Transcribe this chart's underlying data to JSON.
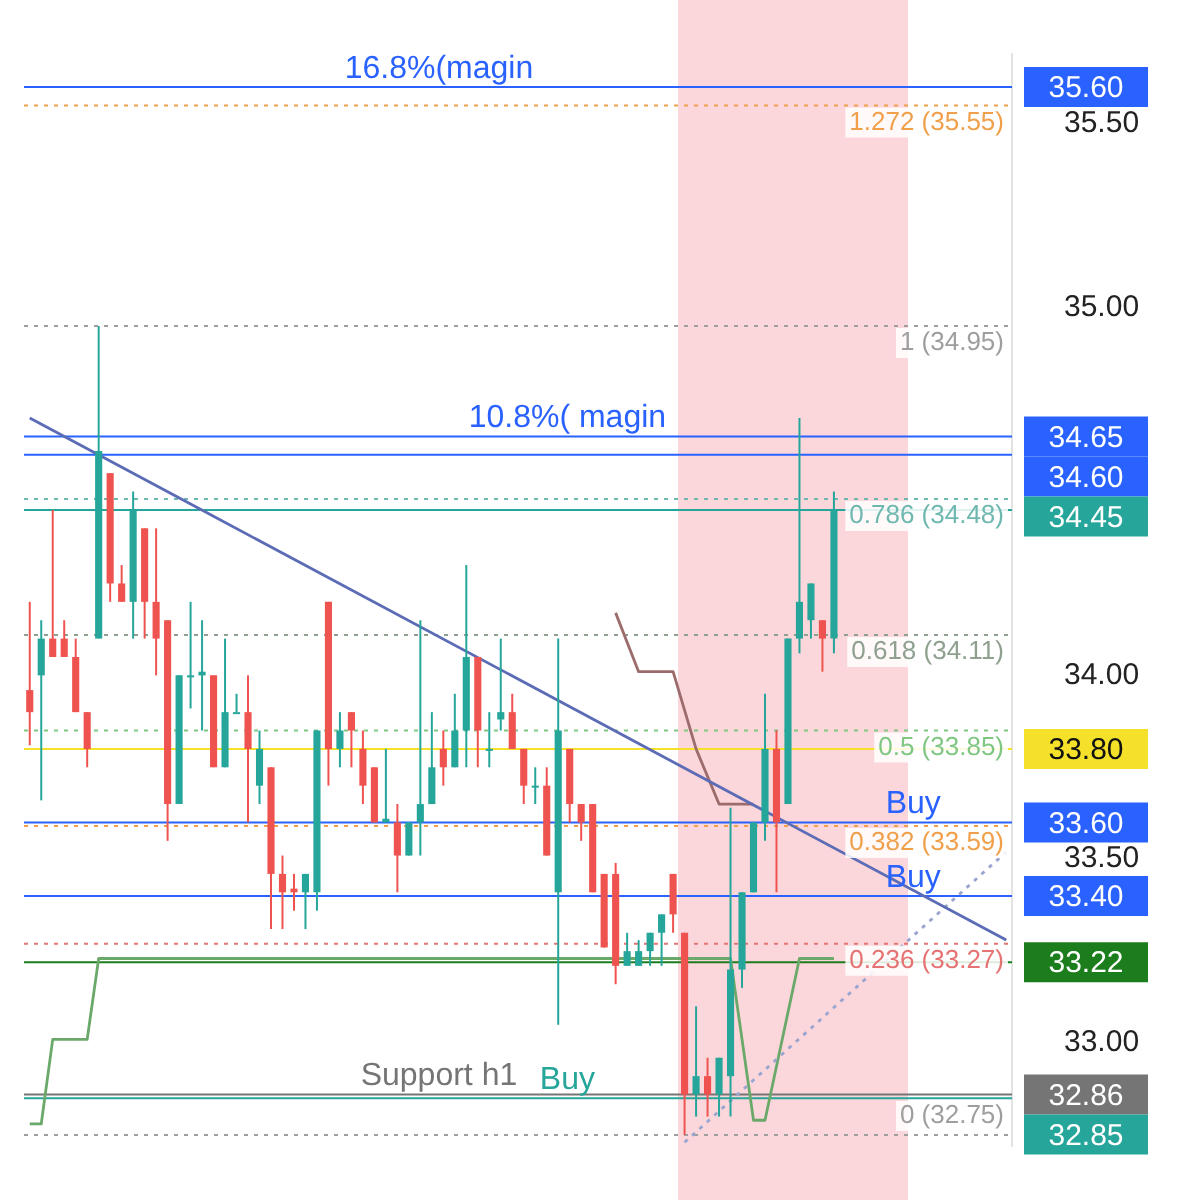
{
  "chart_data": {
    "type": "candlestick",
    "categories": [
      null,
      null,
      null,
      null,
      null,
      null,
      null,
      null,
      null,
      null,
      null,
      null,
      null,
      null,
      null,
      null,
      null,
      null,
      null,
      null,
      null,
      null,
      null,
      null,
      null,
      null,
      null,
      null,
      null,
      null,
      null,
      null,
      null,
      null,
      null,
      null,
      null,
      null,
      null,
      null,
      null,
      null,
      null,
      null,
      null,
      null,
      null,
      null,
      null,
      null,
      null,
      null,
      null,
      null,
      null,
      null,
      null,
      null,
      null,
      null,
      null,
      null,
      null,
      null,
      null,
      null,
      null,
      null,
      null,
      null,
      null,
      null,
      null,
      null,
      null,
      null,
      null,
      null,
      null,
      null,
      null,
      null,
      null,
      null,
      null,
      null
    ],
    "ohlc": [
      [
        33.96,
        34.2,
        33.81,
        33.9
      ],
      [
        34.0,
        34.15,
        33.66,
        34.1
      ],
      [
        34.1,
        34.45,
        34.05,
        34.05
      ],
      [
        34.1,
        34.15,
        34.05,
        34.05
      ],
      [
        34.05,
        34.1,
        33.9,
        33.9
      ],
      [
        33.9,
        33.9,
        33.75,
        33.8
      ],
      [
        34.1,
        34.95,
        34.1,
        34.61
      ],
      [
        34.55,
        34.55,
        34.2,
        34.25
      ],
      [
        34.25,
        34.3,
        34.2,
        34.2
      ],
      [
        34.2,
        34.5,
        34.1,
        34.45
      ],
      [
        34.4,
        34.4,
        34.1,
        34.2
      ],
      [
        34.2,
        34.4,
        34.0,
        34.1
      ],
      [
        34.15,
        34.15,
        33.55,
        33.65
      ],
      [
        33.65,
        34.0,
        33.65,
        34.0
      ],
      [
        34.0,
        34.2,
        33.91,
        34.0
      ],
      [
        34.0,
        34.15,
        33.85,
        34.01
      ],
      [
        34.0,
        34.0,
        33.75,
        33.75
      ],
      [
        33.75,
        34.1,
        33.75,
        33.9
      ],
      [
        33.9,
        33.95,
        33.9,
        33.9
      ],
      [
        33.9,
        34.0,
        33.6,
        33.8
      ],
      [
        33.7,
        33.85,
        33.65,
        33.8
      ],
      [
        33.75,
        33.75,
        33.31,
        33.46
      ],
      [
        33.46,
        33.51,
        33.31,
        33.41
      ],
      [
        33.42,
        33.46,
        33.36,
        33.41
      ],
      [
        33.41,
        33.46,
        33.31,
        33.46
      ],
      [
        33.41,
        33.85,
        33.36,
        33.85
      ],
      [
        34.2,
        34.2,
        33.7,
        33.8
      ],
      [
        33.8,
        33.9,
        33.75,
        33.85
      ],
      [
        33.9,
        33.9,
        33.75,
        33.85
      ],
      [
        33.8,
        33.85,
        33.65,
        33.7
      ],
      [
        33.75,
        33.75,
        33.6,
        33.6
      ],
      [
        33.6,
        33.8,
        33.6,
        33.61
      ],
      [
        33.6,
        33.65,
        33.41,
        33.51
      ],
      [
        33.51,
        33.6,
        33.51,
        33.6
      ],
      [
        33.6,
        34.15,
        33.51,
        33.65
      ],
      [
        33.65,
        33.9,
        33.65,
        33.75
      ],
      [
        33.8,
        33.85,
        33.7,
        33.75
      ],
      [
        33.75,
        33.95,
        33.75,
        33.85
      ],
      [
        33.85,
        34.3,
        33.75,
        34.05
      ],
      [
        34.05,
        34.05,
        33.75,
        33.85
      ],
      [
        33.8,
        33.9,
        33.75,
        33.8
      ],
      [
        33.88,
        34.1,
        33.85,
        33.9
      ],
      [
        33.9,
        33.95,
        33.8,
        33.8
      ],
      [
        33.8,
        33.8,
        33.65,
        33.7
      ],
      [
        33.7,
        33.75,
        33.65,
        33.7
      ],
      [
        33.7,
        33.75,
        33.51,
        33.51
      ],
      [
        33.41,
        34.1,
        33.05,
        33.85
      ],
      [
        33.8,
        33.8,
        33.6,
        33.65
      ],
      [
        33.65,
        33.65,
        33.55,
        33.6
      ],
      [
        33.65,
        33.65,
        33.41,
        33.41
      ],
      [
        33.46,
        33.46,
        33.26,
        33.26
      ],
      [
        33.46,
        33.49,
        33.16,
        33.21
      ],
      [
        33.21,
        33.3,
        33.21,
        33.25
      ],
      [
        33.21,
        33.28,
        33.21,
        33.25
      ],
      [
        33.25,
        33.3,
        33.21,
        33.3
      ],
      [
        33.3,
        33.35,
        33.21,
        33.35
      ],
      [
        33.46,
        33.46,
        33.3,
        33.35
      ],
      [
        33.3,
        33.3,
        32.75,
        32.86
      ],
      [
        32.86,
        33.1,
        32.8,
        32.91
      ],
      [
        32.91,
        32.96,
        32.8,
        32.86
      ],
      [
        32.86,
        32.96,
        32.8,
        32.96
      ],
      [
        32.91,
        33.64,
        32.8,
        33.2
      ],
      [
        33.2,
        33.41,
        33.15,
        33.41
      ],
      [
        33.41,
        33.6,
        33.41,
        33.6
      ],
      [
        33.6,
        33.95,
        33.55,
        33.8
      ],
      [
        33.8,
        33.85,
        33.41,
        33.6
      ],
      [
        33.65,
        34.1,
        33.65,
        34.1
      ],
      [
        34.1,
        34.7,
        34.06,
        34.2
      ],
      [
        34.15,
        34.25,
        34.1,
        34.25
      ],
      [
        34.15,
        34.15,
        34.01,
        34.1
      ],
      [
        34.1,
        34.5,
        34.06,
        34.45
      ],
      null,
      null,
      null,
      null,
      null,
      null,
      null,
      null,
      null,
      null,
      null,
      null,
      null,
      null,
      null
    ],
    "colors": [
      "#ef5350",
      "#26a69a",
      "#ef5350",
      "#ef5350",
      "#ef5350",
      "#ef5350",
      "#26a69a",
      "#ef5350",
      "#ef5350",
      "#26a69a",
      "#ef5350",
      "#ef5350",
      "#ef5350",
      "#26a69a",
      "#26a69a",
      "#26a69a",
      "#ef5350",
      "#26a69a",
      "#26a69a",
      "#ef5350",
      "#26a69a",
      "#ef5350",
      "#ef5350",
      "#ef5350",
      "#26a69a",
      "#26a69a",
      "#ef5350",
      "#26a69a",
      "#ef5350",
      "#ef5350",
      "#ef5350",
      "#26a69a",
      "#ef5350",
      "#26a69a",
      "#26a69a",
      "#26a69a",
      "#ef5350",
      "#26a69a",
      "#26a69a",
      "#ef5350",
      "#26a69a",
      "#26a69a",
      "#ef5350",
      "#ef5350",
      "#26a69a",
      "#ef5350",
      "#26a69a",
      "#ef5350",
      "#ef5350",
      "#ef5350",
      "#ef5350",
      "#ef5350",
      "#26a69a",
      "#26a69a",
      "#26a69a",
      "#26a69a",
      "#ef5350",
      "#ef5350",
      "#26a69a",
      "#ef5350",
      "#26a69a",
      "#26a69a",
      "#26a69a",
      "#26a69a",
      "#26a69a",
      "#ef5350",
      "#26a69a",
      "#26a69a",
      "#26a69a",
      "#ef5350",
      "#26a69a",
      null,
      null,
      null,
      null,
      null,
      null,
      null,
      null,
      null,
      null,
      null,
      null,
      null,
      null,
      null
    ],
    "annotations": [
      "35.60",
      "34.65",
      "34.60",
      "34.45",
      "33.80",
      "33.60",
      "33.40",
      "33.22",
      "32.86",
      "32.85"
    ],
    "series": [
      {
        "type": "line",
        "color": "#5b6bb5",
        "values": [
          34.7,
          null,
          null,
          null,
          null,
          null,
          null,
          null,
          null,
          null,
          null,
          null,
          null,
          null,
          null,
          null,
          null,
          null,
          null,
          null,
          null,
          null,
          null,
          null,
          null,
          null,
          null,
          null,
          null,
          null,
          null,
          null,
          null,
          null,
          null,
          null,
          null,
          null,
          null,
          null,
          null,
          null,
          null,
          null,
          null,
          null,
          null,
          null,
          null,
          null,
          null,
          null,
          null,
          null,
          null,
          null,
          null,
          null,
          null,
          null,
          null,
          null,
          null,
          null,
          null,
          null,
          null,
          null,
          null,
          null,
          null,
          null,
          null,
          null,
          null,
          null,
          null,
          null,
          null,
          null,
          null,
          null,
          null,
          null,
          null,
          33.28
        ]
      },
      {
        "type": "line",
        "color": "#9aa5cf",
        "line_style": "dotted",
        "values": [
          null,
          null,
          null,
          null,
          null,
          null,
          null,
          null,
          null,
          null,
          null,
          null,
          null,
          null,
          null,
          null,
          null,
          null,
          null,
          null,
          null,
          null,
          null,
          null,
          null,
          null,
          null,
          null,
          null,
          null,
          null,
          null,
          null,
          null,
          null,
          null,
          null,
          null,
          null,
          null,
          null,
          null,
          null,
          null,
          null,
          null,
          null,
          null,
          null,
          null,
          null,
          null,
          null,
          null,
          null,
          null,
          null,
          32.73,
          null,
          null,
          null,
          null,
          null,
          null,
          null,
          null,
          null,
          null,
          null,
          null,
          null,
          null,
          null,
          null,
          null,
          null,
          null,
          null,
          null,
          null,
          null,
          null,
          null,
          null,
          null,
          33.52
        ]
      },
      {
        "type": "line",
        "color": "#9c6b6b",
        "values": [
          null,
          null,
          null,
          null,
          null,
          null,
          null,
          null,
          null,
          null,
          null,
          null,
          null,
          null,
          null,
          null,
          null,
          null,
          null,
          null,
          null,
          null,
          null,
          null,
          null,
          null,
          null,
          null,
          null,
          null,
          null,
          null,
          null,
          null,
          null,
          null,
          null,
          null,
          null,
          null,
          null,
          null,
          null,
          null,
          null,
          null,
          null,
          null,
          null,
          null,
          null,
          34.17,
          null,
          34.01,
          null,
          null,
          34.01,
          null,
          33.8,
          null,
          33.65,
          null,
          null,
          33.65,
          null,
          null,
          null,
          null,
          null,
          null,
          null,
          null,
          null,
          null,
          null,
          null,
          null,
          null,
          null,
          null,
          null,
          null,
          null,
          null,
          null,
          null
        ]
      },
      {
        "type": "line",
        "color": "#6aa96a",
        "values": [
          32.78,
          32.78,
          33.01,
          null,
          null,
          33.01,
          33.23,
          null,
          null,
          null,
          null,
          null,
          null,
          null,
          null,
          null,
          null,
          null,
          null,
          null,
          null,
          null,
          null,
          null,
          null,
          null,
          null,
          null,
          null,
          null,
          null,
          null,
          null,
          null,
          null,
          null,
          null,
          null,
          null,
          null,
          null,
          null,
          null,
          null,
          null,
          null,
          null,
          null,
          null,
          null,
          33.23,
          null,
          null,
          null,
          null,
          null,
          null,
          null,
          null,
          null,
          null,
          33.23,
          null,
          32.79,
          32.79,
          null,
          null,
          33.23,
          null,
          null,
          33.23,
          null,
          null,
          null,
          null,
          null,
          null,
          null,
          null,
          null,
          null,
          null,
          null,
          null,
          null,
          null
        ]
      }
    ],
    "ylim": [
      32.72,
      35.69
    ],
    "yticks": [
      {
        "value": 33,
        "label": "33.00"
      },
      {
        "value": 33.5,
        "label": "33.50"
      },
      {
        "value": 34,
        "label": "34.00"
      },
      {
        "value": 35,
        "label": "35.00"
      },
      {
        "value": 35.5,
        "label": "35.50"
      }
    ],
    "tick_labels": "y",
    "grid": false,
    "legend": false,
    "marker": "none",
    "ref_lines": [
      {
        "axis": "y",
        "value": 35.6,
        "label": "16.8%(magin",
        "color": "#2962ff",
        "line_style": "solid"
      },
      {
        "axis": "y",
        "value": 34.65,
        "label": "10.8%( magin",
        "color": "#2962ff",
        "line_style": "solid"
      },
      {
        "axis": "y",
        "value": 34.6,
        "color": "#2962ff",
        "line_style": "solid"
      },
      {
        "axis": "y",
        "value": 34.45,
        "color": "#26a69a",
        "line_style": "solid"
      },
      {
        "axis": "y",
        "value": 33.8,
        "color": "#f5e12a",
        "line_style": "solid"
      },
      {
        "axis": "y",
        "value": 33.6,
        "label": "Buy",
        "color": "#2962ff",
        "line_style": "solid"
      },
      {
        "axis": "y",
        "value": 33.4,
        "label": "Buy",
        "color": "#2962ff",
        "line_style": "solid"
      },
      {
        "axis": "y",
        "value": 33.22,
        "color": "#1b7d1b",
        "line_style": "solid"
      },
      {
        "axis": "y",
        "value": 32.86,
        "label": "Support h1",
        "color": "#757575",
        "line_style": "solid"
      },
      {
        "axis": "y",
        "value": 32.85,
        "label": "Buy",
        "color": "#26a69a",
        "line_style": "solid"
      },
      {
        "axis": "y",
        "value": 35.55,
        "label": "1.272 (35.55)",
        "color": "#f0a04b",
        "line_style": "dotted"
      },
      {
        "axis": "y",
        "value": 34.95,
        "label": "1 (34.95)",
        "color": "#9e9e9e",
        "line_style": "dotted"
      },
      {
        "axis": "y",
        "value": 34.48,
        "label": "0.786 (34.48)",
        "color": "#6fb8b0",
        "line_style": "dotted"
      },
      {
        "axis": "y",
        "value": 34.11,
        "label": "0.618 (34.11)",
        "color": "#8fa08f",
        "line_style": "dotted"
      },
      {
        "axis": "y",
        "value": 33.85,
        "label": "0.5 (33.85)",
        "color": "#81c784",
        "line_style": "dotted"
      },
      {
        "axis": "y",
        "value": 33.59,
        "label": "0.382 (33.59)",
        "color": "#f0a04b",
        "line_style": "dotted"
      },
      {
        "axis": "y",
        "value": 33.27,
        "label": "0.236 (33.27)",
        "color": "#e57373",
        "line_style": "dotted"
      },
      {
        "axis": "y",
        "value": 32.75,
        "label": "0 (32.75)",
        "color": "#9e9e9e",
        "line_style": "dotted"
      }
    ]
  }
}
